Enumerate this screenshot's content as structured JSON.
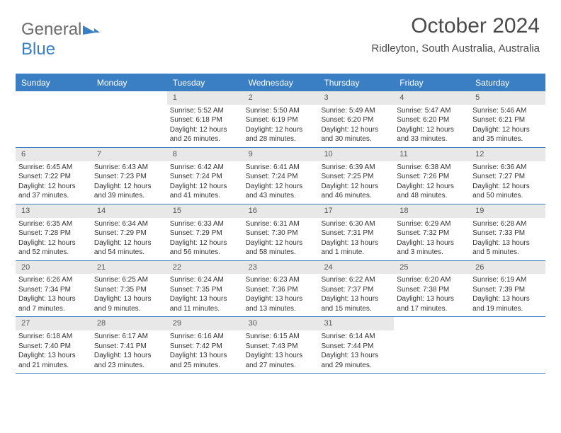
{
  "logo": {
    "text1": "General",
    "text2": "Blue"
  },
  "title": "October 2024",
  "location": "Ridleyton, South Australia, Australia",
  "colors": {
    "header_bg": "#3a7fc4",
    "header_text": "#ffffff",
    "daynum_bg": "#e8e8e8",
    "border": "#3a7fc4",
    "text": "#333333",
    "logo_gray": "#6b6b6b",
    "logo_blue": "#3a7fc4",
    "background": "#ffffff"
  },
  "typography": {
    "title_fontsize": 30,
    "location_fontsize": 15,
    "dayheader_fontsize": 12,
    "daynum_fontsize": 11,
    "cell_fontsize": 10
  },
  "day_headers": [
    "Sunday",
    "Monday",
    "Tuesday",
    "Wednesday",
    "Thursday",
    "Friday",
    "Saturday"
  ],
  "weeks": [
    [
      {
        "empty": true
      },
      {
        "empty": true
      },
      {
        "num": "1",
        "sunrise": "Sunrise: 5:52 AM",
        "sunset": "Sunset: 6:18 PM",
        "daylight": "Daylight: 12 hours and 26 minutes."
      },
      {
        "num": "2",
        "sunrise": "Sunrise: 5:50 AM",
        "sunset": "Sunset: 6:19 PM",
        "daylight": "Daylight: 12 hours and 28 minutes."
      },
      {
        "num": "3",
        "sunrise": "Sunrise: 5:49 AM",
        "sunset": "Sunset: 6:20 PM",
        "daylight": "Daylight: 12 hours and 30 minutes."
      },
      {
        "num": "4",
        "sunrise": "Sunrise: 5:47 AM",
        "sunset": "Sunset: 6:20 PM",
        "daylight": "Daylight: 12 hours and 33 minutes."
      },
      {
        "num": "5",
        "sunrise": "Sunrise: 5:46 AM",
        "sunset": "Sunset: 6:21 PM",
        "daylight": "Daylight: 12 hours and 35 minutes."
      }
    ],
    [
      {
        "num": "6",
        "sunrise": "Sunrise: 6:45 AM",
        "sunset": "Sunset: 7:22 PM",
        "daylight": "Daylight: 12 hours and 37 minutes."
      },
      {
        "num": "7",
        "sunrise": "Sunrise: 6:43 AM",
        "sunset": "Sunset: 7:23 PM",
        "daylight": "Daylight: 12 hours and 39 minutes."
      },
      {
        "num": "8",
        "sunrise": "Sunrise: 6:42 AM",
        "sunset": "Sunset: 7:24 PM",
        "daylight": "Daylight: 12 hours and 41 minutes."
      },
      {
        "num": "9",
        "sunrise": "Sunrise: 6:41 AM",
        "sunset": "Sunset: 7:24 PM",
        "daylight": "Daylight: 12 hours and 43 minutes."
      },
      {
        "num": "10",
        "sunrise": "Sunrise: 6:39 AM",
        "sunset": "Sunset: 7:25 PM",
        "daylight": "Daylight: 12 hours and 46 minutes."
      },
      {
        "num": "11",
        "sunrise": "Sunrise: 6:38 AM",
        "sunset": "Sunset: 7:26 PM",
        "daylight": "Daylight: 12 hours and 48 minutes."
      },
      {
        "num": "12",
        "sunrise": "Sunrise: 6:36 AM",
        "sunset": "Sunset: 7:27 PM",
        "daylight": "Daylight: 12 hours and 50 minutes."
      }
    ],
    [
      {
        "num": "13",
        "sunrise": "Sunrise: 6:35 AM",
        "sunset": "Sunset: 7:28 PM",
        "daylight": "Daylight: 12 hours and 52 minutes."
      },
      {
        "num": "14",
        "sunrise": "Sunrise: 6:34 AM",
        "sunset": "Sunset: 7:29 PM",
        "daylight": "Daylight: 12 hours and 54 minutes."
      },
      {
        "num": "15",
        "sunrise": "Sunrise: 6:33 AM",
        "sunset": "Sunset: 7:29 PM",
        "daylight": "Daylight: 12 hours and 56 minutes."
      },
      {
        "num": "16",
        "sunrise": "Sunrise: 6:31 AM",
        "sunset": "Sunset: 7:30 PM",
        "daylight": "Daylight: 12 hours and 58 minutes."
      },
      {
        "num": "17",
        "sunrise": "Sunrise: 6:30 AM",
        "sunset": "Sunset: 7:31 PM",
        "daylight": "Daylight: 13 hours and 1 minute."
      },
      {
        "num": "18",
        "sunrise": "Sunrise: 6:29 AM",
        "sunset": "Sunset: 7:32 PM",
        "daylight": "Daylight: 13 hours and 3 minutes."
      },
      {
        "num": "19",
        "sunrise": "Sunrise: 6:28 AM",
        "sunset": "Sunset: 7:33 PM",
        "daylight": "Daylight: 13 hours and 5 minutes."
      }
    ],
    [
      {
        "num": "20",
        "sunrise": "Sunrise: 6:26 AM",
        "sunset": "Sunset: 7:34 PM",
        "daylight": "Daylight: 13 hours and 7 minutes."
      },
      {
        "num": "21",
        "sunrise": "Sunrise: 6:25 AM",
        "sunset": "Sunset: 7:35 PM",
        "daylight": "Daylight: 13 hours and 9 minutes."
      },
      {
        "num": "22",
        "sunrise": "Sunrise: 6:24 AM",
        "sunset": "Sunset: 7:35 PM",
        "daylight": "Daylight: 13 hours and 11 minutes."
      },
      {
        "num": "23",
        "sunrise": "Sunrise: 6:23 AM",
        "sunset": "Sunset: 7:36 PM",
        "daylight": "Daylight: 13 hours and 13 minutes."
      },
      {
        "num": "24",
        "sunrise": "Sunrise: 6:22 AM",
        "sunset": "Sunset: 7:37 PM",
        "daylight": "Daylight: 13 hours and 15 minutes."
      },
      {
        "num": "25",
        "sunrise": "Sunrise: 6:20 AM",
        "sunset": "Sunset: 7:38 PM",
        "daylight": "Daylight: 13 hours and 17 minutes."
      },
      {
        "num": "26",
        "sunrise": "Sunrise: 6:19 AM",
        "sunset": "Sunset: 7:39 PM",
        "daylight": "Daylight: 13 hours and 19 minutes."
      }
    ],
    [
      {
        "num": "27",
        "sunrise": "Sunrise: 6:18 AM",
        "sunset": "Sunset: 7:40 PM",
        "daylight": "Daylight: 13 hours and 21 minutes."
      },
      {
        "num": "28",
        "sunrise": "Sunrise: 6:17 AM",
        "sunset": "Sunset: 7:41 PM",
        "daylight": "Daylight: 13 hours and 23 minutes."
      },
      {
        "num": "29",
        "sunrise": "Sunrise: 6:16 AM",
        "sunset": "Sunset: 7:42 PM",
        "daylight": "Daylight: 13 hours and 25 minutes."
      },
      {
        "num": "30",
        "sunrise": "Sunrise: 6:15 AM",
        "sunset": "Sunset: 7:43 PM",
        "daylight": "Daylight: 13 hours and 27 minutes."
      },
      {
        "num": "31",
        "sunrise": "Sunrise: 6:14 AM",
        "sunset": "Sunset: 7:44 PM",
        "daylight": "Daylight: 13 hours and 29 minutes."
      },
      {
        "empty": true
      },
      {
        "empty": true
      }
    ]
  ]
}
